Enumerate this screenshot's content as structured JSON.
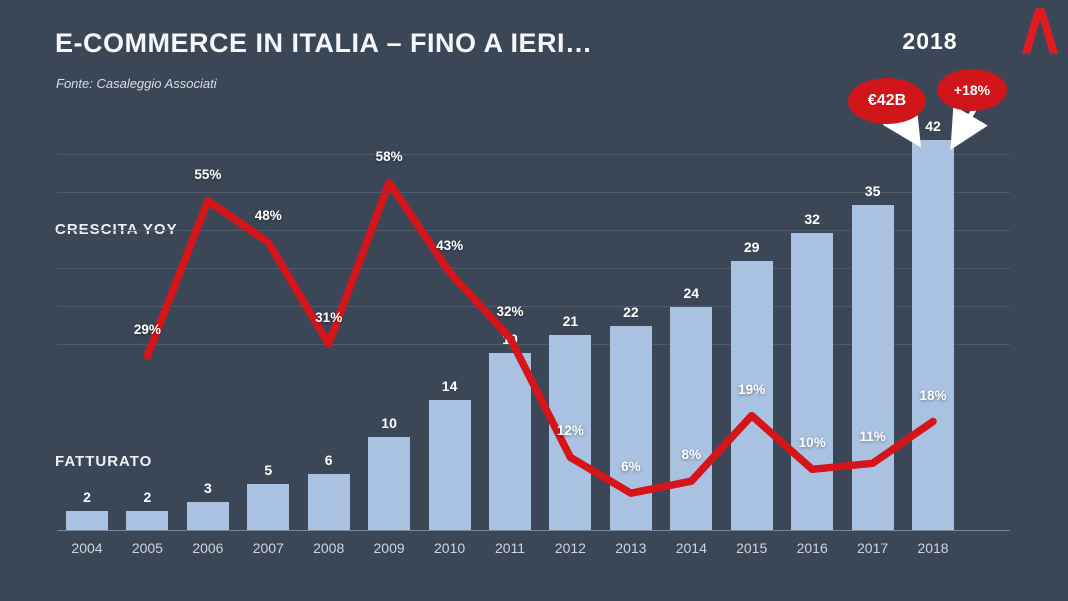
{
  "slide": {
    "title": "E-COMMERCE IN ITALIA – FINO A IERI…",
    "source": "Fonte: Casaleggio Associati",
    "year_callout": "2018",
    "badge_revenue": "€42B",
    "badge_growth": "+18%",
    "label_growth": "CRESCITA YOY",
    "label_revenue": "FATTURATO"
  },
  "colors": {
    "background": "#3b4757",
    "bar": "#a9c2e2",
    "line": "#d6151a",
    "badge": "#d0161a",
    "accent": "#e01b22",
    "text": "#ffffff"
  },
  "chart_data": {
    "type": "combo",
    "title": "E-COMMERCE IN ITALIA – FINO A IERI…",
    "source": "Fonte: Casaleggio Associati",
    "categories": [
      "2004",
      "2005",
      "2006",
      "2007",
      "2008",
      "2009",
      "2010",
      "2011",
      "2012",
      "2013",
      "2014",
      "2015",
      "2016",
      "2017",
      "2018"
    ],
    "series": [
      {
        "name": "FATTURATO",
        "type": "bar",
        "unit": "",
        "values": [
          2,
          2,
          3,
          5,
          6,
          10,
          14,
          19,
          21,
          22,
          24,
          29,
          32,
          35,
          42
        ]
      },
      {
        "name": "CRESCITA YOY",
        "type": "line",
        "unit": "%",
        "values": [
          null,
          29,
          55,
          48,
          31,
          58,
          43,
          32,
          12,
          6,
          8,
          19,
          10,
          11,
          18
        ]
      }
    ],
    "annotations": [
      "2018",
      "€42B",
      "+18%"
    ],
    "legend_position": "left-inline",
    "grid": true
  }
}
